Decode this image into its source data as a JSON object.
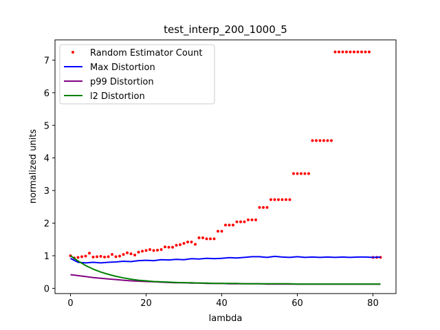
{
  "chart_data": {
    "type": "line",
    "title": "test_interp_200_1000_5",
    "xlabel": "lambda",
    "ylabel": "normalized units",
    "xlim": [
      -4.1,
      86.1
    ],
    "ylim": [
      -0.16,
      7.62
    ],
    "xticks": [
      0,
      20,
      40,
      60,
      80
    ],
    "yticks": [
      0,
      1,
      2,
      3,
      4,
      5,
      6,
      7
    ],
    "grid": false,
    "legend_position": "top-left",
    "series": [
      {
        "name": "Random Estimator Count",
        "style": "dots",
        "color": "#ff0000",
        "x": [
          0,
          1,
          2,
          3,
          4,
          5,
          6,
          7,
          8,
          9,
          10,
          11,
          12,
          13,
          14,
          15,
          16,
          17,
          18,
          19,
          20,
          21,
          22,
          23,
          24,
          25,
          26,
          27,
          28,
          29,
          30,
          31,
          32,
          33,
          34,
          35,
          36,
          37,
          38,
          39,
          40,
          41,
          42,
          43,
          44,
          45,
          46,
          47,
          48,
          49,
          50,
          51,
          52,
          53,
          54,
          55,
          56,
          57,
          58,
          59,
          60,
          61,
          62,
          63,
          64,
          65,
          66,
          67,
          68,
          69,
          70,
          71,
          72,
          73,
          74,
          75,
          76,
          77,
          78,
          79,
          80,
          81,
          82
        ],
        "y": [
          1.0,
          0.93,
          0.95,
          0.97,
          0.99,
          1.08,
          0.96,
          0.97,
          0.98,
          0.96,
          0.97,
          1.04,
          0.97,
          0.99,
          1.04,
          1.09,
          1.06,
          1.02,
          1.11,
          1.14,
          1.16,
          1.19,
          1.16,
          1.17,
          1.19,
          1.27,
          1.26,
          1.26,
          1.32,
          1.34,
          1.38,
          1.42,
          1.42,
          1.35,
          1.55,
          1.55,
          1.52,
          1.52,
          1.52,
          1.75,
          1.75,
          1.94,
          1.94,
          1.94,
          2.04,
          2.04,
          2.04,
          2.1,
          2.1,
          2.1,
          2.48,
          2.48,
          2.48,
          2.72,
          2.72,
          2.72,
          2.72,
          2.72,
          2.72,
          3.52,
          3.52,
          3.52,
          3.52,
          3.52,
          4.53,
          4.53,
          4.53,
          4.53,
          4.53,
          4.53,
          7.25,
          7.25,
          7.25,
          7.25,
          7.25,
          7.25,
          7.25,
          7.25,
          7.25,
          7.25,
          0.95,
          0.95,
          0.95
        ]
      },
      {
        "name": "Max Distortion",
        "style": "line",
        "color": "#0000ff",
        "x": [
          0,
          2,
          4,
          6,
          8,
          10,
          12,
          14,
          16,
          18,
          20,
          22,
          24,
          26,
          28,
          30,
          32,
          34,
          36,
          38,
          40,
          42,
          44,
          46,
          48,
          50,
          52,
          54,
          56,
          58,
          60,
          62,
          64,
          66,
          68,
          70,
          72,
          74,
          76,
          78,
          80,
          82
        ],
        "y": [
          0.92,
          0.8,
          0.78,
          0.8,
          0.78,
          0.8,
          0.81,
          0.83,
          0.82,
          0.85,
          0.86,
          0.85,
          0.88,
          0.87,
          0.89,
          0.88,
          0.91,
          0.9,
          0.92,
          0.91,
          0.92,
          0.94,
          0.93,
          0.95,
          0.97,
          0.97,
          0.95,
          0.98,
          0.96,
          0.95,
          0.97,
          0.95,
          0.96,
          0.95,
          0.96,
          0.95,
          0.96,
          0.95,
          0.96,
          0.96,
          0.95,
          0.96
        ]
      },
      {
        "name": "p99 Distortion",
        "style": "line",
        "color": "#800080",
        "x": [
          0,
          2,
          4,
          6,
          8,
          10,
          12,
          14,
          16,
          18,
          20,
          22,
          24,
          26,
          28,
          30,
          32,
          34,
          36,
          38,
          40,
          42,
          44,
          46,
          48,
          50,
          52,
          54,
          56,
          58,
          60,
          62,
          64,
          66,
          68,
          70,
          72,
          74,
          76,
          78,
          80,
          82
        ],
        "y": [
          0.42,
          0.39,
          0.36,
          0.33,
          0.31,
          0.29,
          0.27,
          0.25,
          0.23,
          0.22,
          0.21,
          0.2,
          0.19,
          0.18,
          0.17,
          0.17,
          0.16,
          0.16,
          0.15,
          0.15,
          0.15,
          0.14,
          0.14,
          0.14,
          0.14,
          0.14,
          0.13,
          0.13,
          0.13,
          0.13,
          0.13,
          0.13,
          0.13,
          0.13,
          0.13,
          0.13,
          0.13,
          0.13,
          0.13,
          0.13,
          0.13,
          0.13
        ]
      },
      {
        "name": "l2 Distortion",
        "style": "line",
        "color": "#008000",
        "x": [
          0,
          2,
          4,
          6,
          8,
          10,
          12,
          14,
          16,
          18,
          20,
          22,
          24,
          26,
          28,
          30,
          32,
          34,
          36,
          38,
          40,
          42,
          44,
          46,
          48,
          50,
          52,
          54,
          56,
          58,
          60,
          62,
          64,
          66,
          68,
          70,
          72,
          74,
          76,
          78,
          80,
          82
        ],
        "y": [
          1.0,
          0.84,
          0.7,
          0.59,
          0.5,
          0.43,
          0.37,
          0.32,
          0.28,
          0.25,
          0.23,
          0.21,
          0.2,
          0.19,
          0.18,
          0.17,
          0.17,
          0.16,
          0.16,
          0.15,
          0.15,
          0.15,
          0.15,
          0.14,
          0.14,
          0.14,
          0.14,
          0.14,
          0.14,
          0.14,
          0.13,
          0.13,
          0.13,
          0.13,
          0.13,
          0.13,
          0.13,
          0.13,
          0.13,
          0.13,
          0.13,
          0.13
        ]
      }
    ]
  }
}
